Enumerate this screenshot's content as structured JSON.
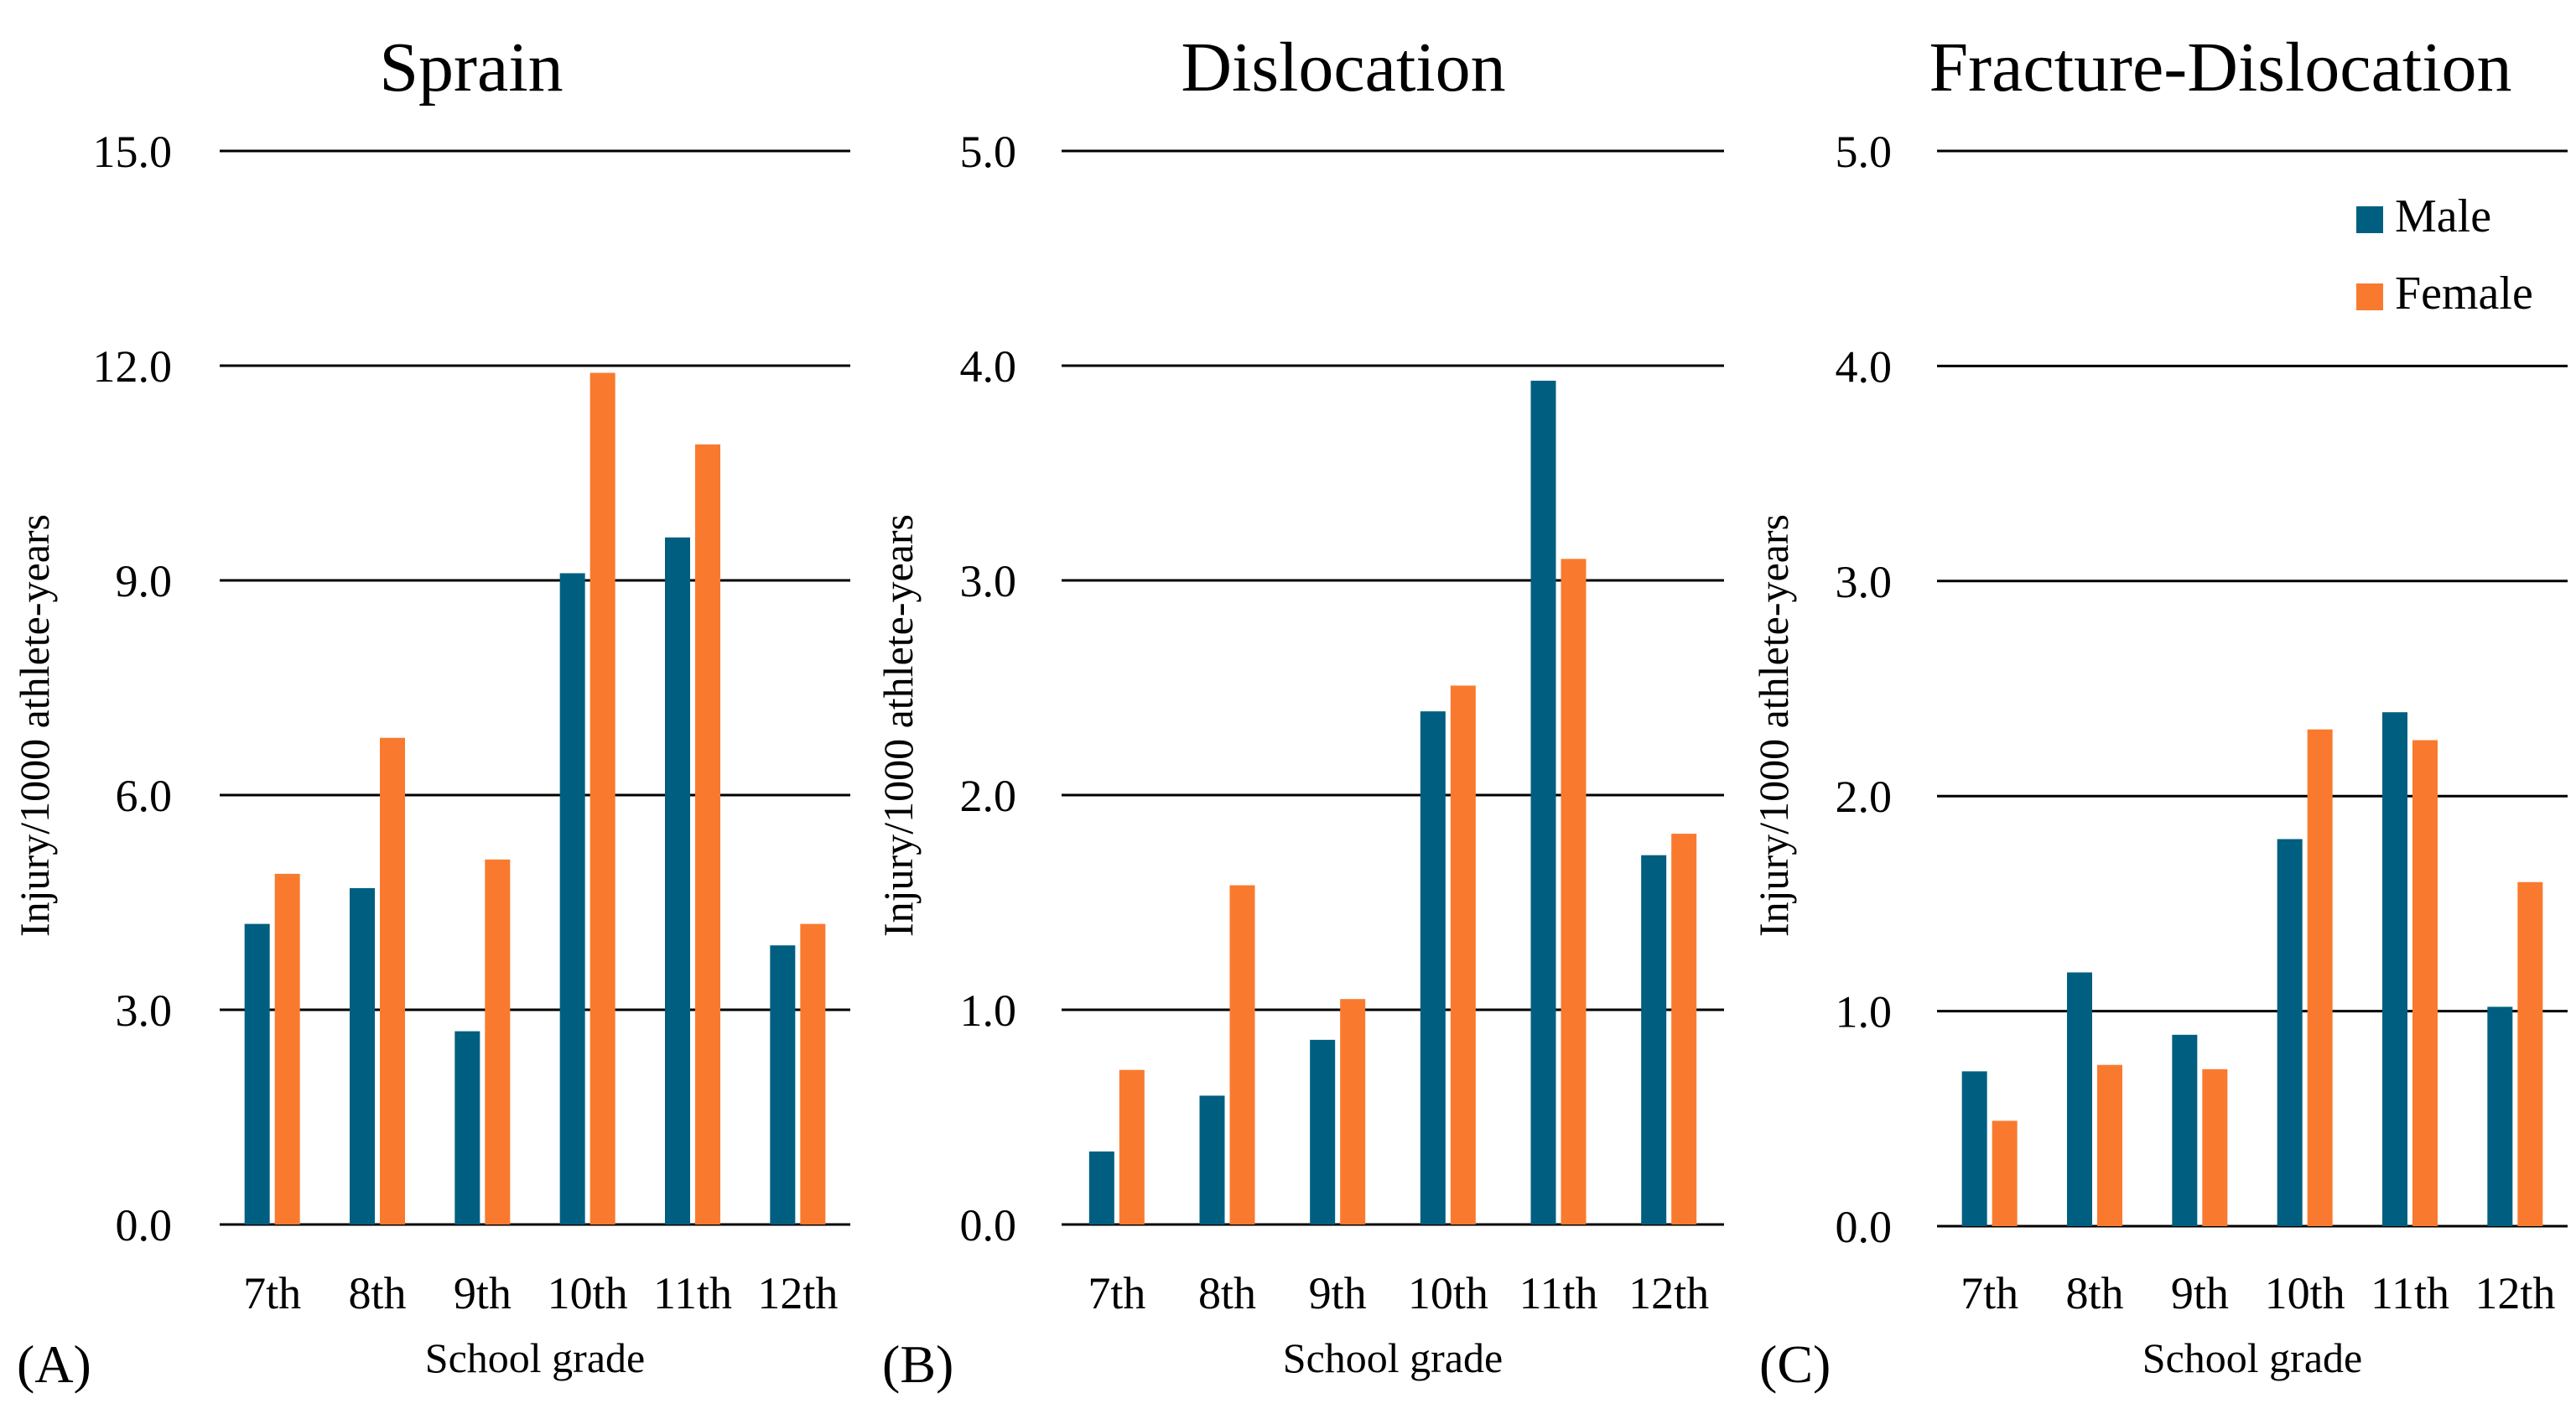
{
  "colors": {
    "male": "#005F80",
    "female": "#F97A2F",
    "gridline": "#000000"
  },
  "legend": {
    "items": [
      {
        "label": "Male",
        "color": "#005F80"
      },
      {
        "label": "Female",
        "color": "#F97A2F"
      }
    ],
    "position": "top-right of panel C"
  },
  "chart_data": [
    {
      "type": "bar",
      "panel": "(A)",
      "title": "Sprain",
      "xlabel": "School grade",
      "ylabel": "Injury/1000 athlete-years",
      "ylim": [
        0,
        15
      ],
      "yticks": [
        "0.0",
        "3.0",
        "6.0",
        "9.0",
        "12.0",
        "15.0"
      ],
      "ytick_values": [
        0,
        3,
        6,
        9,
        12,
        15
      ],
      "categories": [
        "7th",
        "8th",
        "9th",
        "10th",
        "11th",
        "12th"
      ],
      "series": [
        {
          "name": "Male",
          "values": [
            4.2,
            4.7,
            2.7,
            9.1,
            9.6,
            3.9
          ]
        },
        {
          "name": "Female",
          "values": [
            4.9,
            6.8,
            5.1,
            11.9,
            10.9,
            4.2
          ]
        }
      ]
    },
    {
      "type": "bar",
      "panel": "(B)",
      "title": "Dislocation",
      "xlabel": "School grade",
      "ylabel": "Injury/1000 athlete-years",
      "ylim": [
        0,
        5
      ],
      "yticks": [
        "0.0",
        "1.0",
        "2.0",
        "3.0",
        "4.0",
        "5.0"
      ],
      "ytick_values": [
        0,
        1,
        2,
        3,
        4,
        5
      ],
      "categories": [
        "7th",
        "8th",
        "9th",
        "10th",
        "11th",
        "12th"
      ],
      "series": [
        {
          "name": "Male",
          "values": [
            0.34,
            0.6,
            0.86,
            2.39,
            3.93,
            1.72
          ]
        },
        {
          "name": "Female",
          "values": [
            0.72,
            1.58,
            1.05,
            2.51,
            3.1,
            1.82
          ]
        }
      ]
    },
    {
      "type": "bar",
      "panel": "(C)",
      "title": "Fracture-Dislocation",
      "xlabel": "School grade",
      "ylabel": "Injury/1000 athlete-years",
      "ylim": [
        0,
        5
      ],
      "yticks": [
        "0.0",
        "1.0",
        "2.0",
        "3.0",
        "4.0",
        "5.0"
      ],
      "ytick_values": [
        0,
        1,
        2,
        3,
        4,
        5
      ],
      "categories": [
        "7th",
        "8th",
        "9th",
        "10th",
        "11th",
        "12th"
      ],
      "series": [
        {
          "name": "Male",
          "values": [
            0.72,
            1.18,
            0.89,
            1.8,
            2.39,
            1.02
          ]
        },
        {
          "name": "Female",
          "values": [
            0.49,
            0.75,
            0.73,
            2.31,
            2.26,
            1.6
          ]
        }
      ]
    }
  ]
}
